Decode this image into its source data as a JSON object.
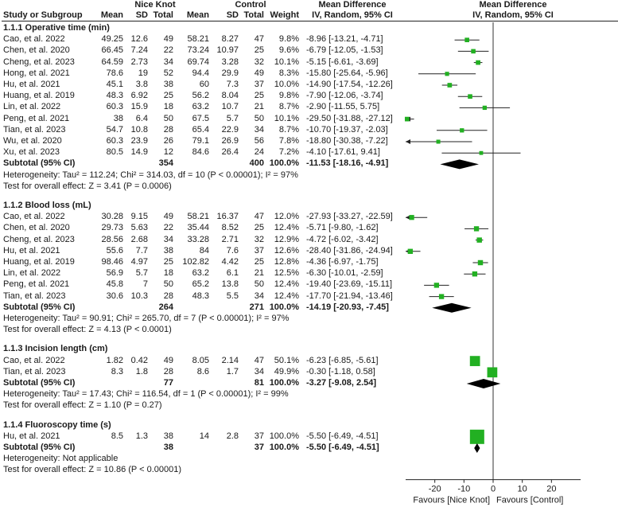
{
  "header": {
    "group1_title": "Nice Knot",
    "group2_title": "Control",
    "md_title_left": "Mean Difference",
    "md_title_right": "Mean Difference",
    "col_study": "Study or Subgroup",
    "col_mean1": "Mean",
    "col_sd1": "SD",
    "col_total1": "Total",
    "col_mean2": "Mean",
    "col_sd2": "SD",
    "col_total2": "Total",
    "col_weight": "Weight",
    "method_left": "IV, Random, 95% CI",
    "method_right": "IV, Random, 95% CI"
  },
  "chart_data": {
    "type": "forest",
    "axis": {
      "xlim": [
        -30,
        30
      ],
      "ticks": [
        -20,
        -10,
        0,
        10,
        20
      ],
      "tick_labels": [
        "-20",
        "-10",
        "0",
        "10",
        "20"
      ],
      "favours_left": "Favours [Nice Knot]",
      "favours_right": "Favours [Control]"
    },
    "subgroups": [
      {
        "title": "1.1.1 Operative time (min)",
        "studies": [
          {
            "study": "Cao, et al. 2022",
            "mean1": "49.25",
            "sd1": "12.6",
            "n1": "49",
            "mean2": "58.21",
            "sd2": "8.27",
            "n2": "47",
            "weight": "9.8%",
            "ci_text": "-8.96 [-13.21, -4.71]",
            "md": -8.96,
            "lo": -13.21,
            "hi": -4.71,
            "w": 9.8
          },
          {
            "study": "Chen, et al. 2020",
            "mean1": "66.45",
            "sd1": "7.24",
            "n1": "22",
            "mean2": "73.24",
            "sd2": "10.97",
            "n2": "25",
            "weight": "9.6%",
            "ci_text": "-6.79 [-12.05, -1.53]",
            "md": -6.79,
            "lo": -12.05,
            "hi": -1.53,
            "w": 9.6
          },
          {
            "study": "Cheng, et al. 2023",
            "mean1": "64.59",
            "sd1": "2.73",
            "n1": "34",
            "mean2": "69.74",
            "sd2": "3.28",
            "n2": "32",
            "weight": "10.1%",
            "ci_text": "-5.15 [-6.61, -3.69]",
            "md": -5.15,
            "lo": -6.61,
            "hi": -3.69,
            "w": 10.1
          },
          {
            "study": "Hong, et al. 2021",
            "mean1": "78.6",
            "sd1": "19",
            "n1": "52",
            "mean2": "94.4",
            "sd2": "29.9",
            "n2": "49",
            "weight": "8.3%",
            "ci_text": "-15.80 [-25.64, -5.96]",
            "md": -15.8,
            "lo": -25.64,
            "hi": -5.96,
            "w": 8.3
          },
          {
            "study": "Hu, et al. 2021",
            "mean1": "45.1",
            "sd1": "3.8",
            "n1": "38",
            "mean2": "60",
            "sd2": "7.3",
            "n2": "37",
            "weight": "10.0%",
            "ci_text": "-14.90 [-17.54, -12.26]",
            "md": -14.9,
            "lo": -17.54,
            "hi": -12.26,
            "w": 10.0
          },
          {
            "study": "Huang, et al. 2019",
            "mean1": "48.3",
            "sd1": "6.92",
            "n1": "25",
            "mean2": "56.2",
            "sd2": "8.04",
            "n2": "25",
            "weight": "9.8%",
            "ci_text": "-7.90 [-12.06, -3.74]",
            "md": -7.9,
            "lo": -12.06,
            "hi": -3.74,
            "w": 9.8
          },
          {
            "study": "Lin, et al. 2022",
            "mean1": "60.3",
            "sd1": "15.9",
            "n1": "18",
            "mean2": "63.2",
            "sd2": "10.7",
            "n2": "21",
            "weight": "8.7%",
            "ci_text": "-2.90 [-11.55, 5.75]",
            "md": -2.9,
            "lo": -11.55,
            "hi": 5.75,
            "w": 8.7
          },
          {
            "study": "Peng, et al. 2021",
            "mean1": "38",
            "sd1": "6.4",
            "n1": "50",
            "mean2": "67.5",
            "sd2": "5.7",
            "n2": "50",
            "weight": "10.1%",
            "ci_text": "-29.50 [-31.88, -27.12]",
            "md": -29.5,
            "lo": -31.88,
            "hi": -27.12,
            "w": 10.1
          },
          {
            "study": "Tian, et al. 2023",
            "mean1": "54.7",
            "sd1": "10.8",
            "n1": "28",
            "mean2": "65.4",
            "sd2": "22.9",
            "n2": "34",
            "weight": "8.7%",
            "ci_text": "-10.70 [-19.37, -2.03]",
            "md": -10.7,
            "lo": -19.37,
            "hi": -2.03,
            "w": 8.7
          },
          {
            "study": "Wu, et al. 2020",
            "mean1": "60.3",
            "sd1": "23.9",
            "n1": "26",
            "mean2": "79.1",
            "sd2": "26.9",
            "n2": "56",
            "weight": "7.8%",
            "ci_text": "-18.80 [-30.38, -7.22]",
            "md": -18.8,
            "lo": -30.38,
            "hi": -7.22,
            "w": 7.8
          },
          {
            "study": "Xu, et al. 2023",
            "mean1": "80.5",
            "sd1": "14.9",
            "n1": "12",
            "mean2": "84.6",
            "sd2": "26.4",
            "n2": "24",
            "weight": "7.2%",
            "ci_text": "-4.10 [-17.61, 9.41]",
            "md": -4.1,
            "lo": -17.61,
            "hi": 9.41,
            "w": 7.2
          }
        ],
        "subtotal": {
          "label": "Subtotal (95% CI)",
          "n1": "354",
          "n2": "400",
          "weight": "100.0%",
          "ci_text": "-11.53 [-18.16, -4.91]",
          "md": -11.53,
          "lo": -18.16,
          "hi": -4.91
        },
        "heterogeneity": "Heterogeneity: Tau² = 112.24; Chi² = 314.03, df = 10 (P < 0.00001); I² = 97%",
        "overall_effect": "Test for overall effect: Z = 3.41 (P = 0.0006)"
      },
      {
        "title": "1.1.2 Blood loss (mL)",
        "studies": [
          {
            "study": "Cao, et al. 2022",
            "mean1": "30.28",
            "sd1": "9.15",
            "n1": "49",
            "mean2": "58.21",
            "sd2": "16.37",
            "n2": "47",
            "weight": "12.0%",
            "ci_text": "-27.93 [-33.27, -22.59]",
            "md": -27.93,
            "lo": -33.27,
            "hi": -22.59,
            "w": 12.0
          },
          {
            "study": "Chen, et al. 2020",
            "mean1": "29.73",
            "sd1": "5.63",
            "n1": "22",
            "mean2": "35.44",
            "sd2": "8.52",
            "n2": "25",
            "weight": "12.4%",
            "ci_text": "-5.71 [-9.80, -1.62]",
            "md": -5.71,
            "lo": -9.8,
            "hi": -1.62,
            "w": 12.4
          },
          {
            "study": "Cheng, et al. 2023",
            "mean1": "28.56",
            "sd1": "2.68",
            "n1": "34",
            "mean2": "33.28",
            "sd2": "2.71",
            "n2": "32",
            "weight": "12.9%",
            "ci_text": "-4.72 [-6.02, -3.42]",
            "md": -4.72,
            "lo": -6.02,
            "hi": -3.42,
            "w": 12.9
          },
          {
            "study": "Hu, et al. 2021",
            "mean1": "55.6",
            "sd1": "7.7",
            "n1": "38",
            "mean2": "84",
            "sd2": "7.6",
            "n2": "37",
            "weight": "12.6%",
            "ci_text": "-28.40 [-31.86, -24.94]",
            "md": -28.4,
            "lo": -31.86,
            "hi": -24.94,
            "w": 12.6
          },
          {
            "study": "Huang, et al. 2019",
            "mean1": "98.46",
            "sd1": "4.97",
            "n1": "25",
            "mean2": "102.82",
            "sd2": "4.42",
            "n2": "25",
            "weight": "12.8%",
            "ci_text": "-4.36 [-6.97, -1.75]",
            "md": -4.36,
            "lo": -6.97,
            "hi": -1.75,
            "w": 12.8
          },
          {
            "study": "Lin, et al. 2022",
            "mean1": "56.9",
            "sd1": "5.7",
            "n1": "18",
            "mean2": "63.2",
            "sd2": "6.1",
            "n2": "21",
            "weight": "12.5%",
            "ci_text": "-6.30 [-10.01, -2.59]",
            "md": -6.3,
            "lo": -10.01,
            "hi": -2.59,
            "w": 12.5
          },
          {
            "study": "Peng, et al. 2021",
            "mean1": "45.8",
            "sd1": "7",
            "n1": "50",
            "mean2": "65.2",
            "sd2": "13.8",
            "n2": "50",
            "weight": "12.4%",
            "ci_text": "-19.40 [-23.69, -15.11]",
            "md": -19.4,
            "lo": -23.69,
            "hi": -15.11,
            "w": 12.4
          },
          {
            "study": "Tian, et al. 2023",
            "mean1": "30.6",
            "sd1": "10.3",
            "n1": "28",
            "mean2": "48.3",
            "sd2": "5.5",
            "n2": "34",
            "weight": "12.4%",
            "ci_text": "-17.70 [-21.94, -13.46]",
            "md": -17.7,
            "lo": -21.94,
            "hi": -13.46,
            "w": 12.4
          }
        ],
        "subtotal": {
          "label": "Subtotal (95% CI)",
          "n1": "264",
          "n2": "271",
          "weight": "100.0%",
          "ci_text": "-14.19 [-20.93, -7.45]",
          "md": -14.19,
          "lo": -20.93,
          "hi": -7.45
        },
        "heterogeneity": "Heterogeneity: Tau² = 90.91; Chi² = 265.70, df = 7 (P < 0.00001); I² = 97%",
        "overall_effect": "Test for overall effect: Z = 4.13 (P < 0.0001)"
      },
      {
        "title": "1.1.3 Incision length (cm)",
        "studies": [
          {
            "study": "Cao, et al. 2022",
            "mean1": "1.82",
            "sd1": "0.42",
            "n1": "49",
            "mean2": "8.05",
            "sd2": "2.14",
            "n2": "47",
            "weight": "50.1%",
            "ci_text": "-6.23 [-6.85, -5.61]",
            "md": -6.23,
            "lo": -6.85,
            "hi": -5.61,
            "w": 50.1
          },
          {
            "study": "Tian, et al. 2023",
            "mean1": "8.3",
            "sd1": "1.8",
            "n1": "28",
            "mean2": "8.6",
            "sd2": "1.7",
            "n2": "34",
            "weight": "49.9%",
            "ci_text": "-0.30 [-1.18, 0.58]",
            "md": -0.3,
            "lo": -1.18,
            "hi": 0.58,
            "w": 49.9
          }
        ],
        "subtotal": {
          "label": "Subtotal (95% CI)",
          "n1": "77",
          "n2": "81",
          "weight": "100.0%",
          "ci_text": "-3.27 [-9.08, 2.54]",
          "md": -3.27,
          "lo": -9.08,
          "hi": 2.54
        },
        "heterogeneity": "Heterogeneity: Tau² = 17.43; Chi² = 116.54, df = 1 (P < 0.00001); I² = 99%",
        "overall_effect": "Test for overall effect: Z = 1.10 (P = 0.27)"
      },
      {
        "title": "1.1.4 Fluoroscopy time (s)",
        "studies": [
          {
            "study": "Hu, et al. 2021",
            "mean1": "8.5",
            "sd1": "1.3",
            "n1": "38",
            "mean2": "14",
            "sd2": "2.8",
            "n2": "37",
            "weight": "100.0%",
            "ci_text": "-5.50 [-6.49, -4.51]",
            "md": -5.5,
            "lo": -6.49,
            "hi": -4.51,
            "w": 100.0
          }
        ],
        "subtotal": {
          "label": "Subtotal (95% CI)",
          "n1": "38",
          "n2": "37",
          "weight": "100.0%",
          "ci_text": "-5.50 [-6.49, -4.51]",
          "md": -5.5,
          "lo": -6.49,
          "hi": -4.51
        },
        "heterogeneity": "Heterogeneity: Not applicable",
        "overall_effect": "Test for overall effect: Z = 10.86 (P < 0.00001)"
      }
    ]
  },
  "colors": {
    "square": "#22b022",
    "diamond": "#000000",
    "text": "#1a1a1a"
  }
}
